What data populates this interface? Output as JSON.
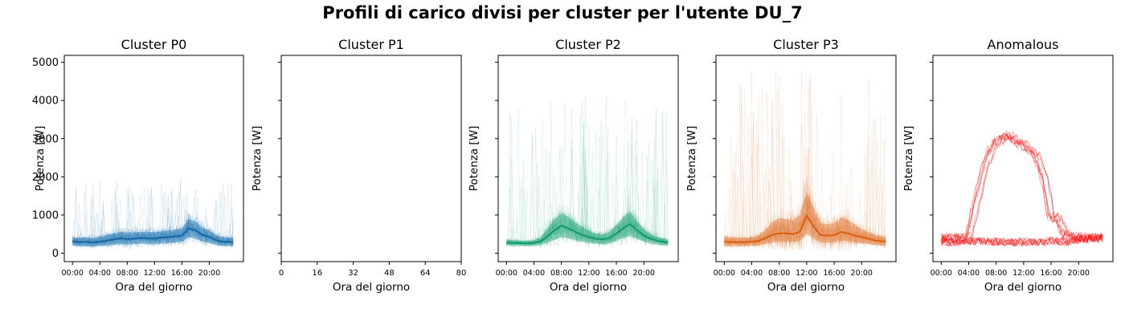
{
  "title": "Profili di carico divisi per cluster per l'utente DU_7",
  "chart_data": [
    {
      "type": "line",
      "title": "Cluster P0",
      "xlabel": "Ora del giorno",
      "ylabel": "Potenza [W]",
      "color": "#1f77b4",
      "line_color": "#1665a1",
      "x_ticks": [
        "00:00",
        "04:00",
        "08:00",
        "12:00",
        "16:00",
        "20:00"
      ],
      "y_ticks": [
        0,
        1000,
        2000,
        3000,
        4000,
        5000
      ],
      "ylim": [
        -220,
        5180
      ],
      "xlim": [
        -1.2,
        25
      ],
      "mean_profile": {
        "x": [
          0,
          1,
          2,
          3,
          4,
          5,
          6,
          7,
          8,
          9,
          10,
          11,
          12,
          13,
          14,
          15,
          16,
          17,
          18,
          19,
          20,
          21,
          22,
          23.5
        ],
        "y": [
          310,
          290,
          300,
          280,
          300,
          330,
          360,
          390,
          370,
          380,
          400,
          390,
          380,
          410,
          420,
          440,
          460,
          650,
          600,
          480,
          430,
          340,
          300,
          290
        ]
      },
      "band_upper": [
        420,
        400,
        420,
        400,
        420,
        470,
        520,
        560,
        540,
        550,
        560,
        560,
        550,
        570,
        590,
        620,
        660,
        900,
        830,
        680,
        600,
        470,
        420,
        400
      ],
      "band_lower": [
        200,
        180,
        185,
        170,
        185,
        200,
        220,
        240,
        230,
        235,
        250,
        240,
        230,
        250,
        260,
        280,
        300,
        420,
        380,
        300,
        270,
        210,
        190,
        185
      ],
      "trace_peak": 1900
    },
    {
      "type": "line",
      "title": "Cluster P1",
      "xlabel": "Ora del giorno",
      "ylabel": "Potenza [W]",
      "color": "#1f77b4",
      "x_ticks": [
        "0",
        "16",
        "32",
        "48",
        "64",
        "80"
      ],
      "xlim": [
        0,
        80
      ],
      "ylim": [
        -220,
        5180
      ],
      "empty": true
    },
    {
      "type": "line",
      "title": "Cluster P2",
      "xlabel": "Ora del giorno",
      "ylabel": "Potenza [W]",
      "color": "#2ca87f",
      "line_color": "#0f9a6b",
      "x_ticks": [
        "00:00",
        "04:00",
        "08:00",
        "12:00",
        "16:00",
        "20:00"
      ],
      "ylim": [
        -220,
        5180
      ],
      "xlim": [
        -1.2,
        25
      ],
      "mean_profile": {
        "x": [
          0,
          1,
          2,
          3,
          4,
          5,
          6,
          7,
          8,
          9,
          10,
          11,
          12,
          13,
          14,
          15,
          16,
          17,
          18,
          19,
          20,
          21,
          22,
          23.5
        ],
        "y": [
          280,
          270,
          265,
          260,
          270,
          310,
          450,
          600,
          720,
          650,
          560,
          480,
          420,
          380,
          360,
          400,
          520,
          650,
          760,
          600,
          460,
          380,
          320,
          280
        ]
      },
      "band_upper": [
        360,
        340,
        330,
        330,
        340,
        420,
        650,
        900,
        1050,
        950,
        820,
        700,
        600,
        520,
        500,
        560,
        740,
        950,
        1100,
        850,
        640,
        500,
        420,
        360
      ],
      "band_lower": [
        200,
        190,
        190,
        185,
        190,
        210,
        280,
        350,
        420,
        390,
        340,
        300,
        270,
        250,
        240,
        260,
        320,
        400,
        450,
        370,
        300,
        250,
        220,
        200
      ],
      "trace_peak": 4150
    },
    {
      "type": "line",
      "title": "Cluster P3",
      "xlabel": "Ora del giorno",
      "ylabel": "Potenza [W]",
      "color": "#e07b39",
      "line_color": "#d95f0e",
      "x_ticks": [
        "00:00",
        "04:00",
        "08:00",
        "12:00",
        "16:00",
        "20:00"
      ],
      "ylim": [
        -220,
        5180
      ],
      "xlim": [
        -1.2,
        25
      ],
      "mean_profile": {
        "x": [
          0,
          1,
          2,
          3,
          4,
          5,
          6,
          7,
          8,
          9,
          10,
          11,
          12,
          13,
          14,
          15,
          16,
          17,
          18,
          19,
          20,
          21,
          22,
          23.5
        ],
        "y": [
          300,
          290,
          290,
          290,
          300,
          320,
          400,
          480,
          520,
          520,
          500,
          560,
          980,
          700,
          480,
          460,
          470,
          560,
          520,
          460,
          420,
          380,
          330,
          300
        ]
      },
      "band_upper": [
        430,
        420,
        410,
        410,
        420,
        470,
        620,
        820,
        920,
        900,
        860,
        1000,
        1600,
        1200,
        800,
        760,
        780,
        940,
        880,
        750,
        640,
        560,
        480,
        430
      ],
      "band_lower": [
        190,
        185,
        185,
        185,
        190,
        200,
        240,
        280,
        300,
        300,
        290,
        320,
        500,
        380,
        290,
        280,
        285,
        330,
        310,
        280,
        260,
        240,
        210,
        190
      ],
      "trace_peak": 4800
    },
    {
      "type": "line",
      "title": "Anomalous",
      "xlabel": "Ora del giorno",
      "ylabel": "Potenza [W]",
      "color": "#ff0000",
      "x_ticks": [
        "00:00",
        "04:00",
        "08:00",
        "12:00",
        "16:00",
        "20:00"
      ],
      "ylim": [
        -220,
        5180
      ],
      "xlim": [
        -1.2,
        25
      ],
      "high_profile": {
        "x": [
          0,
          1,
          2,
          3,
          4,
          5,
          6,
          7,
          8,
          9,
          10,
          11,
          12,
          13,
          14,
          15,
          16,
          17,
          18,
          19,
          20,
          21,
          22,
          23.5
        ],
        "y": [
          400,
          420,
          380,
          400,
          450,
          1200,
          2000,
          2600,
          2900,
          3000,
          3100,
          2900,
          2850,
          2700,
          2500,
          2000,
          1000,
          900,
          500,
          450,
          420,
          400,
          380,
          400
        ]
      },
      "low_profile": {
        "x": [
          0,
          2,
          4,
          6,
          8,
          10,
          12,
          14,
          16,
          18,
          20,
          22,
          23.5
        ],
        "y": [
          300,
          280,
          300,
          320,
          300,
          280,
          300,
          280,
          320,
          300,
          350,
          400,
          380
        ]
      }
    }
  ]
}
